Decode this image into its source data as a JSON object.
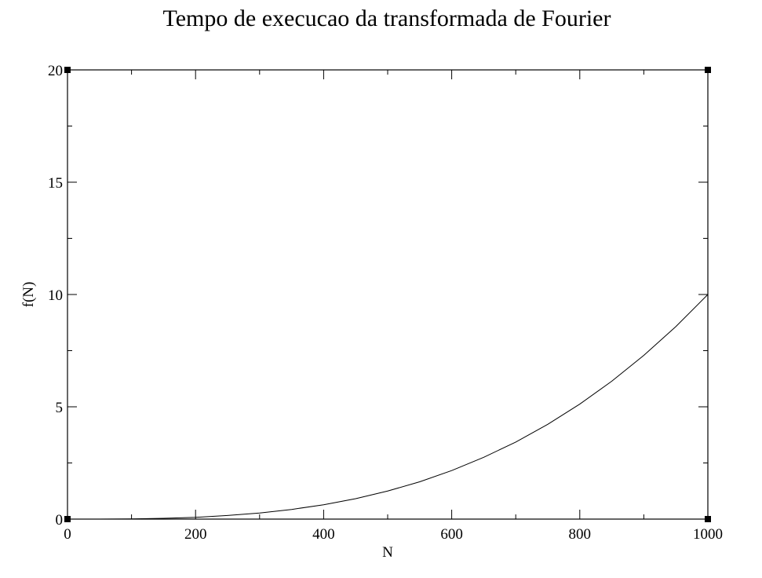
{
  "chart_data": {
    "type": "line",
    "title": "Tempo de execucao da transformada de Fourier",
    "xlabel": "N",
    "ylabel": "f(N)",
    "xlim": [
      0,
      1000
    ],
    "ylim": [
      0,
      20
    ],
    "x_ticks": [
      "0",
      "200",
      "400",
      "600",
      "800",
      "1000"
    ],
    "y_ticks": [
      "0",
      "5",
      "10",
      "15",
      "20"
    ],
    "grid": false,
    "legend": "none",
    "series": [
      {
        "color": "#000000",
        "x": [
          50,
          100,
          150,
          200,
          250,
          300,
          350,
          400,
          450,
          500,
          550,
          600,
          650,
          700,
          750,
          800,
          850,
          900,
          950,
          1000
        ],
        "y": [
          0.001,
          0.01,
          0.034,
          0.08,
          0.16,
          0.27,
          0.43,
          0.64,
          0.91,
          1.25,
          1.66,
          2.16,
          2.75,
          3.43,
          4.22,
          5.12,
          6.14,
          7.29,
          8.57,
          10.0
        ]
      }
    ]
  }
}
